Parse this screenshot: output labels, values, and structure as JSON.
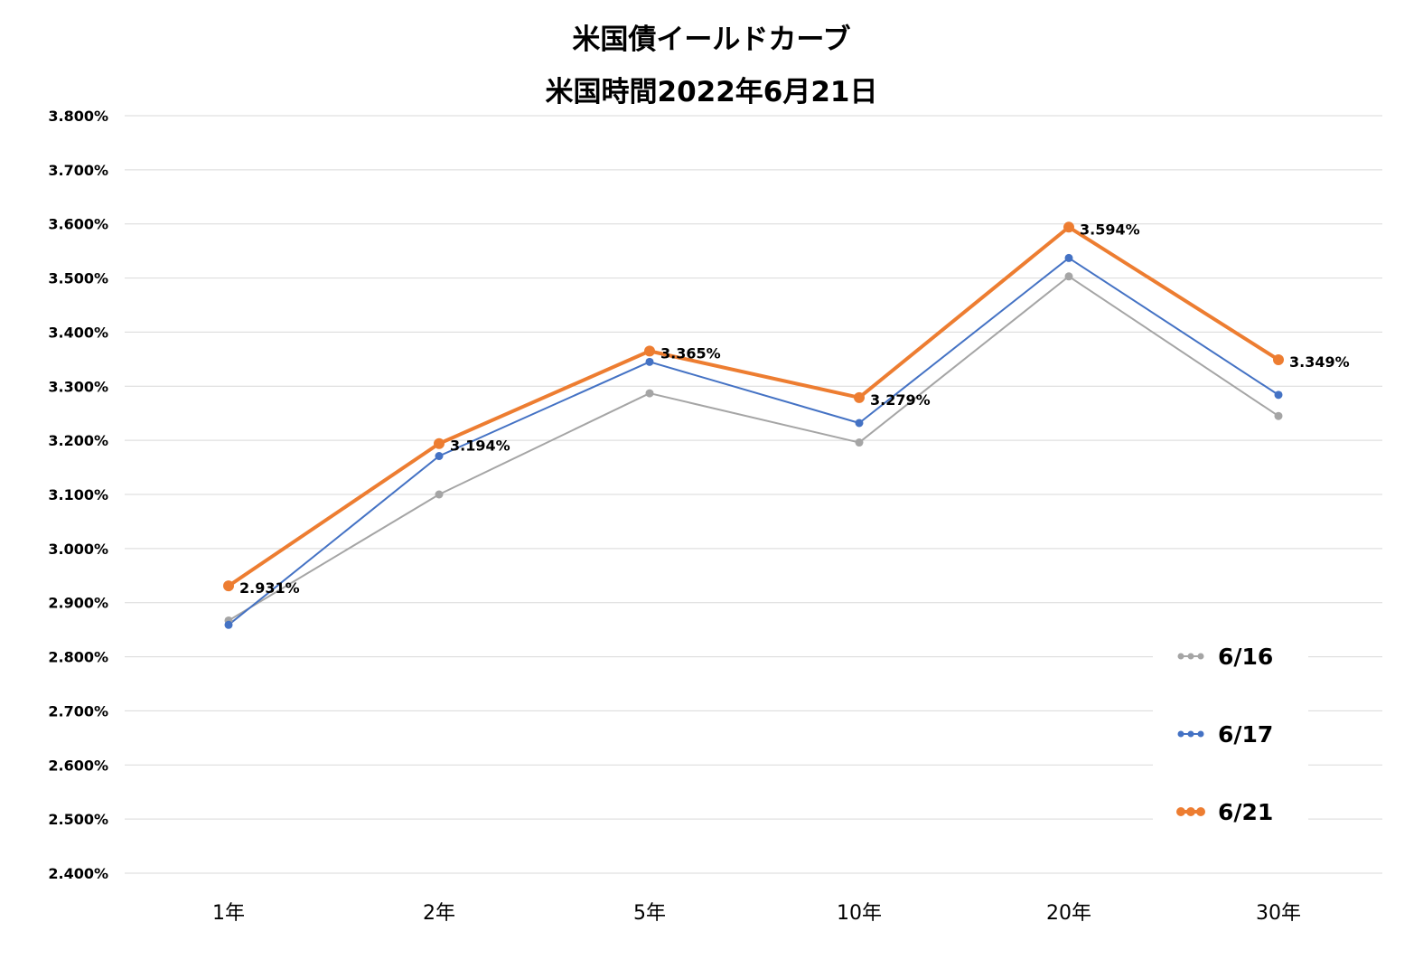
{
  "chart_data": {
    "type": "line",
    "title": "米国債イールドカーブ",
    "subtitle": "米国時間2022年6月21日",
    "categories": [
      "1年",
      "2年",
      "5年",
      "10年",
      "20年",
      "30年"
    ],
    "ylim": [
      2.4,
      3.8
    ],
    "yticks": [
      "3.800%",
      "3.700%",
      "3.600%",
      "3.500%",
      "3.400%",
      "3.300%",
      "3.200%",
      "3.100%",
      "3.000%",
      "2.900%",
      "2.800%",
      "2.700%",
      "2.600%",
      "2.500%",
      "2.400%"
    ],
    "grid": true,
    "legend_position": "bottom-right",
    "series": [
      {
        "name": "6/16",
        "color": "#a5a5a5",
        "values": [
          2.867,
          3.1,
          3.287,
          3.196,
          3.503,
          3.245
        ]
      },
      {
        "name": "6/17",
        "color": "#4472c4",
        "values": [
          2.859,
          3.171,
          3.345,
          3.232,
          3.537,
          3.284
        ]
      },
      {
        "name": "6/21",
        "color": "#ed7d31",
        "values": [
          2.931,
          3.194,
          3.365,
          3.279,
          3.594,
          3.349
        ],
        "data_labels": [
          "2.931%",
          "3.194%",
          "3.365%",
          "3.279%",
          "3.594%",
          "3.349%"
        ]
      }
    ]
  }
}
